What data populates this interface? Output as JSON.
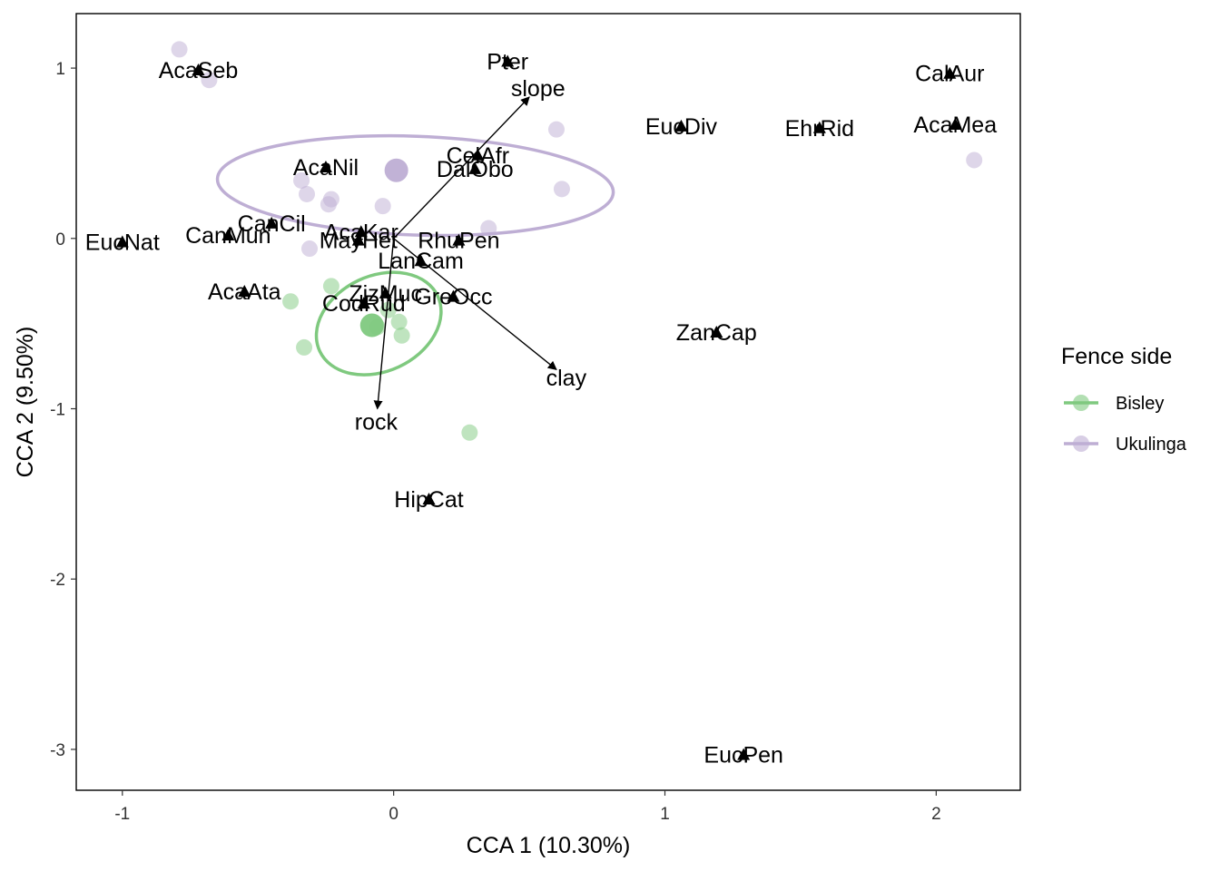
{
  "chart_data": {
    "type": "scatter",
    "xlabel": "CCA 1 (10.30%)",
    "ylabel": "CCA 2 (9.50%)",
    "xlim": [
      -1.17,
      2.31
    ],
    "ylim": [
      -3.24,
      1.32
    ],
    "xticks": [
      -1,
      0,
      1,
      2
    ],
    "yticks": [
      1,
      0,
      -1,
      -2,
      -3
    ],
    "grid": false,
    "legend": {
      "title": "Fence side",
      "position": "right",
      "entries": [
        {
          "name": "Bisley",
          "color": "#7fc97f"
        },
        {
          "name": "Ukulinga",
          "color": "#beaed4"
        }
      ]
    },
    "site_groups": [
      {
        "name": "Bisley",
        "color": "#7fc97f",
        "centroid": [
          -0.08,
          -0.51
        ],
        "ellipse": {
          "cx": -0.055,
          "cy": -0.5,
          "rx": 0.24,
          "ry": 0.28,
          "angle_deg": 25
        },
        "points": [
          [
            -0.38,
            -0.37
          ],
          [
            -0.23,
            -0.28
          ],
          [
            -0.33,
            -0.64
          ],
          [
            0.02,
            -0.49
          ],
          [
            0.03,
            -0.57
          ],
          [
            -0.02,
            -0.42
          ],
          [
            -0.06,
            -0.52
          ],
          [
            0.28,
            -1.14
          ]
        ]
      },
      {
        "name": "Ukulinga",
        "color": "#beaed4",
        "centroid": [
          0.01,
          0.4
        ],
        "ellipse": {
          "cx": 0.08,
          "cy": 0.31,
          "rx": 0.73,
          "ry": 0.29,
          "angle_deg": -2
        },
        "points": [
          [
            -0.79,
            1.11
          ],
          [
            -0.68,
            0.93
          ],
          [
            -0.34,
            0.34
          ],
          [
            -0.32,
            0.26
          ],
          [
            -0.23,
            0.23
          ],
          [
            -0.24,
            0.2
          ],
          [
            -0.04,
            0.19
          ],
          [
            -0.31,
            -0.06
          ],
          [
            0.35,
            0.06
          ],
          [
            0.6,
            0.64
          ],
          [
            0.62,
            0.29
          ],
          [
            2.14,
            0.46
          ]
        ]
      }
    ],
    "species": [
      {
        "name": "AcaSeb",
        "x": -0.72,
        "y": 0.99
      },
      {
        "name": "Pter",
        "x": 0.42,
        "y": 1.04
      },
      {
        "name": "CalAur",
        "x": 2.05,
        "y": 0.97
      },
      {
        "name": "AcaMea",
        "x": 2.07,
        "y": 0.67
      },
      {
        "name": "EucDiv",
        "x": 1.06,
        "y": 0.66
      },
      {
        "name": "EhrRid",
        "x": 1.57,
        "y": 0.65
      },
      {
        "name": "AcaNil",
        "x": -0.25,
        "y": 0.42
      },
      {
        "name": "CelAfr",
        "x": 0.31,
        "y": 0.49
      },
      {
        "name": "DalObo",
        "x": 0.3,
        "y": 0.41
      },
      {
        "name": "CanCil",
        "x": -0.45,
        "y": 0.09
      },
      {
        "name": "AcaKar",
        "x": -0.12,
        "y": 0.04
      },
      {
        "name": "CanMun",
        "x": -0.61,
        "y": 0.02
      },
      {
        "name": "EucNat",
        "x": -1.0,
        "y": -0.02
      },
      {
        "name": "MayHet",
        "x": -0.13,
        "y": -0.01
      },
      {
        "name": "RhuPen",
        "x": 0.24,
        "y": -0.01
      },
      {
        "name": "LanCam",
        "x": 0.1,
        "y": -0.13
      },
      {
        "name": "AcaAta",
        "x": -0.55,
        "y": -0.31
      },
      {
        "name": "ZizMuc",
        "x": -0.03,
        "y": -0.32
      },
      {
        "name": "GreOcc",
        "x": 0.22,
        "y": -0.34
      },
      {
        "name": "CodRud",
        "x": -0.11,
        "y": -0.38
      },
      {
        "name": "ZanCap",
        "x": 1.19,
        "y": -0.55
      },
      {
        "name": "HipCat",
        "x": 0.13,
        "y": -1.53
      },
      {
        "name": "EucPen",
        "x": 1.29,
        "y": -3.03
      }
    ],
    "env_vectors": [
      {
        "name": "slope",
        "x": 0.5,
        "y": 0.83
      },
      {
        "name": "clay",
        "x": 0.6,
        "y": -0.77
      },
      {
        "name": "rock",
        "x": -0.06,
        "y": -1.0
      }
    ]
  }
}
